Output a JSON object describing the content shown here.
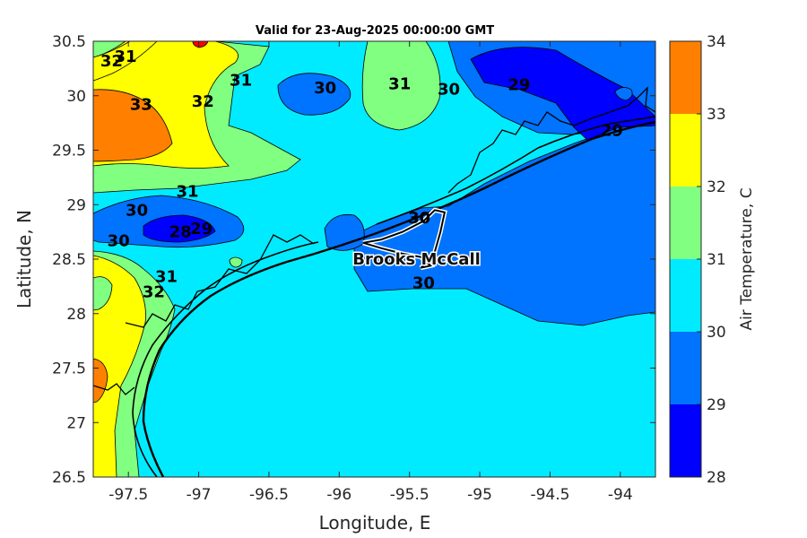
{
  "chart_data": {
    "type": "heatmap",
    "title": "Valid for 23-Aug-2025 00:00:00 GMT",
    "xlabel": "Longitude, E",
    "ylabel": "Latitude, N",
    "xlim": [
      -97.75,
      -93.75
    ],
    "ylim": [
      26.5,
      30.5
    ],
    "x_ticks": [
      "-97.5",
      "-97",
      "-96.5",
      "-96",
      "-95.5",
      "-95",
      "-94.5",
      "-94"
    ],
    "x_tick_values": [
      -97.5,
      -97,
      -96.5,
      -96,
      -95.5,
      -95,
      -94.5,
      -94
    ],
    "y_ticks": [
      "26.5",
      "27",
      "27.5",
      "28",
      "28.5",
      "29",
      "29.5",
      "30",
      "30.5"
    ],
    "y_tick_values": [
      26.5,
      27,
      27.5,
      28,
      28.5,
      29,
      29.5,
      30,
      30.5
    ],
    "colorbar": {
      "label": "Air Temperature, C",
      "levels": [
        28,
        29,
        30,
        31,
        32,
        33,
        34
      ],
      "tick_labels": [
        "28",
        "29",
        "30",
        "31",
        "32",
        "33",
        "34"
      ],
      "colors": [
        "#0000ff",
        "#0073ff",
        "#00ebff",
        "#80ff80",
        "#ffff00",
        "#ff8000",
        "#ff0000"
      ]
    },
    "contour_labels": [
      {
        "text": "32",
        "lon": -97.62,
        "lat": 30.32
      },
      {
        "text": "31",
        "lon": -97.52,
        "lat": 30.36
      },
      {
        "text": "33",
        "lon": -97.41,
        "lat": 29.92
      },
      {
        "text": "32",
        "lon": -96.97,
        "lat": 29.95
      },
      {
        "text": "31",
        "lon": -96.7,
        "lat": 30.14
      },
      {
        "text": "30",
        "lon": -96.1,
        "lat": 30.07
      },
      {
        "text": "31",
        "lon": -95.57,
        "lat": 30.11
      },
      {
        "text": "30",
        "lon": -95.22,
        "lat": 30.06
      },
      {
        "text": "29",
        "lon": -94.72,
        "lat": 30.1
      },
      {
        "text": "29",
        "lon": -94.06,
        "lat": 29.68
      },
      {
        "text": "31",
        "lon": -97.08,
        "lat": 29.12
      },
      {
        "text": "30",
        "lon": -97.44,
        "lat": 28.95
      },
      {
        "text": "28",
        "lon": -97.13,
        "lat": 28.75
      },
      {
        "text": "29",
        "lon": -96.98,
        "lat": 28.78
      },
      {
        "text": "30",
        "lon": -97.57,
        "lat": 28.67
      },
      {
        "text": "31",
        "lon": -97.23,
        "lat": 28.34
      },
      {
        "text": "32",
        "lon": -97.32,
        "lat": 28.2
      },
      {
        "text": "30",
        "lon": -95.43,
        "lat": 28.88
      },
      {
        "text": "30",
        "lon": -95.4,
        "lat": 28.28
      }
    ],
    "annotations": [
      {
        "text": "Brooks McCall",
        "lon": -95.45,
        "lat": 28.5
      }
    ],
    "station_track": [
      [
        -95.83,
        28.65
      ],
      [
        -95.7,
        28.6
      ],
      [
        -95.55,
        28.55
      ],
      [
        -95.42,
        28.52
      ],
      [
        -95.35,
        28.44
      ],
      [
        -95.42,
        28.42
      ],
      [
        -95.33,
        28.52
      ],
      [
        -95.28,
        28.75
      ],
      [
        -95.25,
        28.93
      ],
      [
        -95.32,
        28.95
      ],
      [
        -95.4,
        28.85
      ],
      [
        -95.55,
        28.75
      ],
      [
        -95.7,
        28.68
      ],
      [
        -95.83,
        28.65
      ]
    ]
  }
}
